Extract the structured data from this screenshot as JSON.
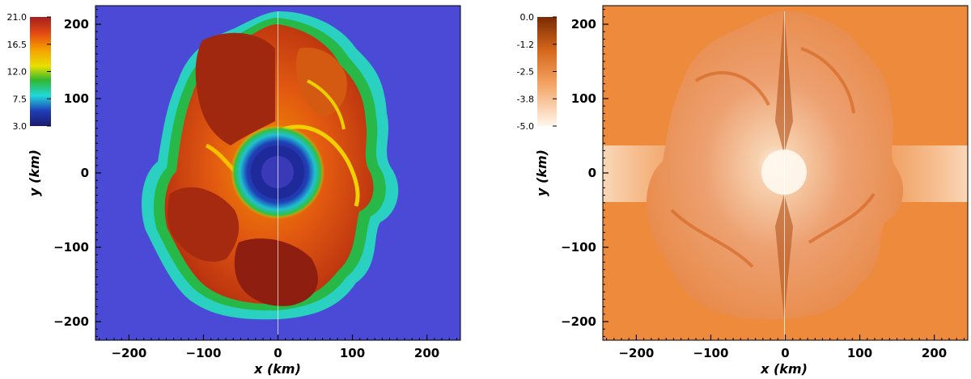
{
  "colors": {
    "density_background": "#4a4ad6",
    "entropy_background": "#ee8a3c",
    "axis": "#000000"
  },
  "chart_data": [
    {
      "type": "heatmap",
      "title": "",
      "xlabel": "x  (km)",
      "ylabel": "y  (km)",
      "xlim": [
        -245,
        245
      ],
      "ylim": [
        -225,
        225
      ],
      "x_ticks": [
        -200,
        -100,
        0,
        100,
        200
      ],
      "y_ticks": [
        -200,
        -100,
        0,
        100,
        200
      ],
      "x_tick_labels": [
        "−200",
        "−100",
        "0",
        "100",
        "200"
      ],
      "y_tick_labels": [
        "−200",
        "−100",
        "0",
        "100",
        "200"
      ],
      "colorbar": {
        "colormap": "rainbow",
        "range": [
          3.0,
          21.0
        ],
        "tick_labels": [
          "21.0",
          "16.5",
          "12.0",
          "7.5",
          "3.0"
        ],
        "placement": "top-left"
      },
      "grid": false,
      "legend": "none"
    },
    {
      "type": "heatmap",
      "title": "",
      "xlabel": "x  (km)",
      "ylabel": "y  (km)",
      "xlim": [
        -245,
        245
      ],
      "ylim": [
        -225,
        225
      ],
      "x_ticks": [
        -200,
        -100,
        0,
        100,
        200
      ],
      "y_ticks": [
        -200,
        -100,
        0,
        100,
        200
      ],
      "x_tick_labels": [
        "−200",
        "−100",
        "0",
        "100",
        "200"
      ],
      "y_tick_labels": [
        "−200",
        "−100",
        "0",
        "100",
        "200"
      ],
      "colorbar": {
        "colormap": "orange",
        "range": [
          -5.0,
          0.0
        ],
        "tick_labels": [
          "0.0",
          "-1.2",
          "-2.5",
          "-3.8",
          "-5.0"
        ],
        "placement": "top-left"
      },
      "grid": false,
      "legend": "none"
    }
  ]
}
